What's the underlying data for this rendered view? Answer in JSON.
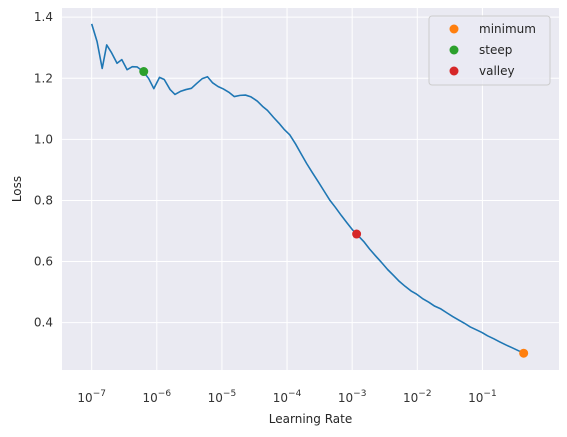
{
  "chart_data": {
    "type": "line",
    "xlabel": "Learning Rate",
    "ylabel": "Loss",
    "xscale": "log",
    "xlim": [
      3.5e-08,
      1.5
    ],
    "ylim": [
      0.245,
      1.43
    ],
    "grid": true,
    "legend_position": "top-right",
    "x_ticks": [
      {
        "value": 1e-07,
        "base": "10",
        "exp": "−7"
      },
      {
        "value": 1e-06,
        "base": "10",
        "exp": "−6"
      },
      {
        "value": 1e-05,
        "base": "10",
        "exp": "−5"
      },
      {
        "value": 0.0001,
        "base": "10",
        "exp": "−4"
      },
      {
        "value": 0.001,
        "base": "10",
        "exp": "−3"
      },
      {
        "value": 0.01,
        "base": "10",
        "exp": "−2"
      },
      {
        "value": 0.1,
        "base": "10",
        "exp": "−1"
      }
    ],
    "y_ticks": [
      {
        "value": 0.4,
        "label": "0.4"
      },
      {
        "value": 0.6,
        "label": "0.6"
      },
      {
        "value": 0.8,
        "label": "0.8"
      },
      {
        "value": 1.0,
        "label": "1.0"
      },
      {
        "value": 1.2,
        "label": "1.2"
      },
      {
        "value": 1.4,
        "label": "1.4"
      }
    ],
    "series": [
      {
        "color": "#1f77b4",
        "points": [
          [
            1e-07,
            1.378
          ],
          [
            1.21e-07,
            1.32
          ],
          [
            1.45e-07,
            1.232
          ],
          [
            1.7e-07,
            1.309
          ],
          [
            2e-07,
            1.285
          ],
          [
            2.45e-07,
            1.249
          ],
          [
            2.9e-07,
            1.261
          ],
          [
            3.5e-07,
            1.228
          ],
          [
            4.2e-07,
            1.238
          ],
          [
            5e-07,
            1.237
          ],
          [
            6.2e-07,
            1.222
          ],
          [
            7.5e-07,
            1.199
          ],
          [
            9e-07,
            1.166
          ],
          [
            1.1e-06,
            1.203
          ],
          [
            1.3e-06,
            1.196
          ],
          [
            1.6e-06,
            1.163
          ],
          [
            1.9e-06,
            1.147
          ],
          [
            2.3e-06,
            1.157
          ],
          [
            2.8e-06,
            1.163
          ],
          [
            3.4e-06,
            1.167
          ],
          [
            4.1e-06,
            1.183
          ],
          [
            5e-06,
            1.199
          ],
          [
            6e-06,
            1.205
          ],
          [
            7.2e-06,
            1.185
          ],
          [
            8.7e-06,
            1.173
          ],
          [
            1.05e-05,
            1.165
          ],
          [
            1.3e-05,
            1.153
          ],
          [
            1.55e-05,
            1.14
          ],
          [
            1.9e-05,
            1.144
          ],
          [
            2.3e-05,
            1.145
          ],
          [
            2.8e-05,
            1.139
          ],
          [
            3.5e-05,
            1.125
          ],
          [
            4.2e-05,
            1.108
          ],
          [
            5e-05,
            1.095
          ],
          [
            6.2e-05,
            1.072
          ],
          [
            7.5e-05,
            1.053
          ],
          [
            9e-05,
            1.033
          ],
          [
            0.00011,
            1.015
          ],
          [
            0.000135,
            0.985
          ],
          [
            0.000165,
            0.952
          ],
          [
            0.0002,
            0.921
          ],
          [
            0.000245,
            0.891
          ],
          [
            0.0003,
            0.862
          ],
          [
            0.00037,
            0.831
          ],
          [
            0.00045,
            0.802
          ],
          [
            0.00055,
            0.778
          ],
          [
            0.00068,
            0.751
          ],
          [
            0.00083,
            0.727
          ],
          [
            0.00102,
            0.703
          ],
          [
            0.00117,
            0.69
          ],
          [
            0.0015,
            0.666
          ],
          [
            0.00185,
            0.641
          ],
          [
            0.0023,
            0.618
          ],
          [
            0.00285,
            0.596
          ],
          [
            0.0035,
            0.574
          ],
          [
            0.0043,
            0.555
          ],
          [
            0.0053,
            0.535
          ],
          [
            0.0065,
            0.519
          ],
          [
            0.008,
            0.504
          ],
          [
            0.0098,
            0.493
          ],
          [
            0.012,
            0.479
          ],
          [
            0.015,
            0.467
          ],
          [
            0.0185,
            0.454
          ],
          [
            0.023,
            0.445
          ],
          [
            0.0285,
            0.432
          ],
          [
            0.035,
            0.42
          ],
          [
            0.043,
            0.409
          ],
          [
            0.053,
            0.398
          ],
          [
            0.065,
            0.386
          ],
          [
            0.08,
            0.377
          ],
          [
            0.098,
            0.368
          ],
          [
            0.12,
            0.357
          ],
          [
            0.15,
            0.347
          ],
          [
            0.185,
            0.337
          ],
          [
            0.23,
            0.327
          ],
          [
            0.285,
            0.318
          ],
          [
            0.35,
            0.309
          ],
          [
            0.43,
            0.3
          ]
        ]
      }
    ],
    "markers": [
      {
        "name": "minimum",
        "x": 0.43,
        "y": 0.3,
        "color": "#ff7f0e"
      },
      {
        "name": "steep",
        "x": 6.3e-07,
        "y": 1.222,
        "color": "#2ca02c"
      },
      {
        "name": "valley",
        "x": 0.00117,
        "y": 0.69,
        "color": "#d62728"
      }
    ]
  }
}
